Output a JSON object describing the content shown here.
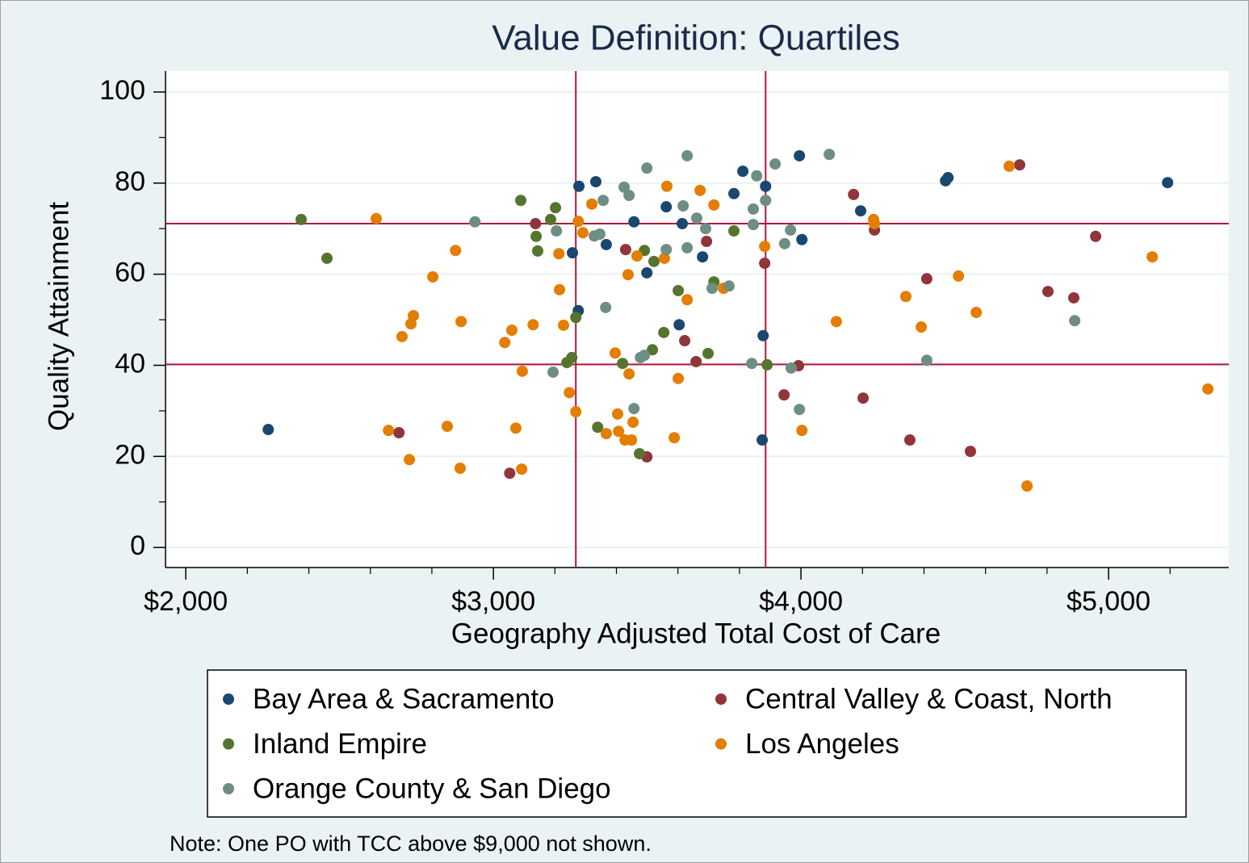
{
  "chart_data": {
    "type": "scatter",
    "title": "Value Definition: Quartiles",
    "x_label": "Geography Adjusted Total Cost of Care",
    "y_label": "Quality Attainment",
    "note": "Note: One PO with TCC above $9,000 not shown.",
    "xlim": [
      1934,
      5391
    ],
    "ylim": [
      -4.4,
      104.6
    ],
    "xticks": [
      {
        "value": 2000,
        "label": "$2,000"
      },
      {
        "value": 3000,
        "label": "$3,000"
      },
      {
        "value": 4000,
        "label": "$4,000"
      },
      {
        "value": 5000,
        "label": "$5,000"
      }
    ],
    "xticks_minor": [
      2200,
      2400,
      2600,
      2800,
      3200,
      3400,
      3600,
      3800,
      4200,
      4400,
      4600,
      4800,
      5200
    ],
    "yticks": [
      0,
      20,
      40,
      60,
      80,
      100
    ],
    "yticks_minor": [
      10,
      30,
      50,
      70,
      90
    ],
    "grid": true,
    "reference_lines": {
      "x": [
        3268,
        3885
      ],
      "y": [
        71.1,
        40.2
      ],
      "color": "#b2173b"
    },
    "series": [
      {
        "name": "Bay Area & Sacramento",
        "color": "#1a476f",
        "x": [
          2268,
          3278,
          3257,
          3276,
          3333,
          3367,
          3457,
          3499,
          3562,
          3614,
          3604,
          3680,
          3782,
          3811,
          3885,
          3877,
          3874,
          3995,
          4003,
          4194,
          4470,
          4478,
          5192
        ],
        "values": [
          25.9,
          79.3,
          64.7,
          52.0,
          80.3,
          66.5,
          71.5,
          60.3,
          74.8,
          71.1,
          48.9,
          63.8,
          77.7,
          82.6,
          79.3,
          46.5,
          23.6,
          86.0,
          67.6,
          73.9,
          80.5,
          81.2,
          80.1
        ]
      },
      {
        "name": "Central Valley & Coast, North",
        "color": "#90353b",
        "x": [
          2693,
          3053,
          3137,
          3430,
          3499,
          3622,
          3659,
          3693,
          3882,
          3945,
          3992,
          4171,
          4202,
          4239,
          4354,
          4409,
          4551,
          4711,
          4803,
          4887,
          4958
        ],
        "values": [
          25.2,
          16.3,
          71.1,
          65.4,
          19.9,
          45.4,
          40.8,
          67.2,
          62.4,
          33.5,
          39.9,
          77.5,
          32.8,
          69.7,
          23.6,
          59.0,
          21.1,
          84.0,
          56.2,
          54.8,
          68.3
        ]
      },
      {
        "name": "Inland Empire",
        "color": "#55752f",
        "x": [
          2375,
          2459,
          3089,
          3139,
          3144,
          3186,
          3202,
          3239,
          3255,
          3268,
          3339,
          3420,
          3475,
          3491,
          3522,
          3517,
          3554,
          3601,
          3698,
          3717,
          3782,
          3890
        ],
        "values": [
          72.0,
          63.5,
          76.2,
          68.3,
          65.1,
          72.0,
          74.6,
          40.6,
          41.7,
          50.5,
          26.4,
          40.4,
          20.6,
          65.2,
          62.8,
          43.4,
          47.2,
          56.4,
          42.6,
          58.3,
          69.5,
          40.1
        ]
      },
      {
        "name": "Los Angeles",
        "color": "#e37e00",
        "x": [
          2619,
          2659,
          2703,
          2727,
          2732,
          2740,
          2803,
          2850,
          2877,
          2895,
          2892,
          3037,
          3060,
          3073,
          3092,
          3094,
          3129,
          3213,
          3215,
          3228,
          3247,
          3268,
          3276,
          3291,
          3320,
          3367,
          3396,
          3404,
          3407,
          3428,
          3438,
          3441,
          3449,
          3454,
          3467,
          3556,
          3564,
          3588,
          3601,
          3630,
          3672,
          3717,
          3748,
          3882,
          4003,
          4115,
          4236,
          4239,
          4341,
          4391,
          4512,
          4570,
          4677,
          4735,
          5142,
          5323
        ],
        "values": [
          72.2,
          25.7,
          46.3,
          19.3,
          49.1,
          50.9,
          59.4,
          26.6,
          65.2,
          49.6,
          17.4,
          45.0,
          47.7,
          26.2,
          17.2,
          38.7,
          48.9,
          64.5,
          56.6,
          48.8,
          34.0,
          29.8,
          71.6,
          69.1,
          75.4,
          25.0,
          42.7,
          29.3,
          25.5,
          23.6,
          59.9,
          38.1,
          23.6,
          27.5,
          64.0,
          63.5,
          79.3,
          24.1,
          37.1,
          54.4,
          78.4,
          75.2,
          56.9,
          66.1,
          25.7,
          49.6,
          72.0,
          71.1,
          55.1,
          48.4,
          59.6,
          51.6,
          83.7,
          13.5,
          63.8,
          34.8
        ]
      },
      {
        "name": "Orange County & San Diego",
        "color": "#6e8e84",
        "x": [
          2940,
          3194,
          3205,
          3328,
          3346,
          3357,
          3365,
          3425,
          3441,
          3457,
          3478,
          3491,
          3499,
          3562,
          3617,
          3630,
          3630,
          3661,
          3690,
          3711,
          3766,
          3840,
          3845,
          3845,
          3856,
          3885,
          3916,
          3947,
          3966,
          3968,
          3995,
          4092,
          4409,
          4890
        ],
        "values": [
          71.5,
          38.5,
          69.5,
          68.4,
          68.8,
          76.2,
          52.7,
          79.1,
          77.3,
          30.5,
          41.7,
          42.2,
          83.3,
          65.4,
          75.0,
          65.8,
          86.0,
          72.3,
          70.0,
          56.9,
          57.4,
          40.4,
          74.3,
          70.9,
          81.6,
          76.2,
          84.2,
          66.7,
          69.7,
          39.4,
          30.3,
          86.3,
          41.1,
          49.8
        ]
      }
    ]
  }
}
